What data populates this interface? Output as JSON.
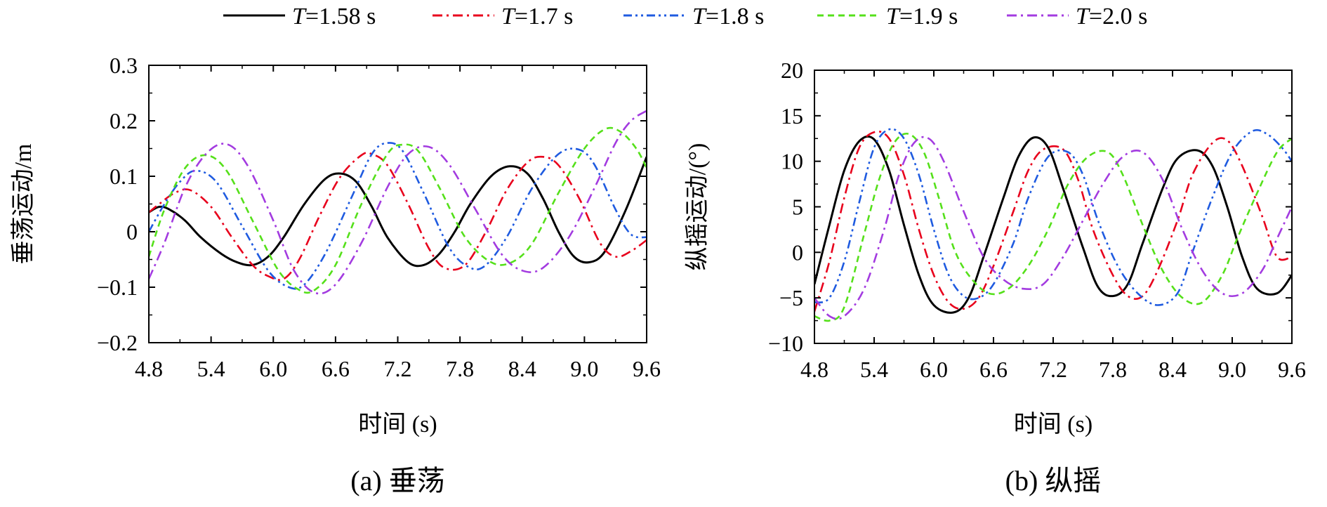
{
  "legend": [
    {
      "prefix": "T",
      "suffix": "=1.58 s"
    },
    {
      "prefix": "T",
      "suffix": "=1.7 s"
    },
    {
      "prefix": "T",
      "suffix": "=1.8 s"
    },
    {
      "prefix": "T",
      "suffix": "=1.9 s"
    },
    {
      "prefix": "T",
      "suffix": "=2.0 s"
    }
  ],
  "series_style": [
    {
      "color": "#000000",
      "dash": "solid"
    },
    {
      "color": "#e8001c",
      "dash": "dash-dot"
    },
    {
      "color": "#1f5be0",
      "dash": "dash-dot-dot"
    },
    {
      "color": "#55e01a",
      "dash": "dashed"
    },
    {
      "color": "#a33be0",
      "dash": "dash-dot"
    }
  ],
  "chart_data": [
    {
      "type": "line",
      "caption": "(a) 垂荡",
      "xlabel": "时间 (s)",
      "ylabel": "垂荡运动/m",
      "xlim": [
        4.8,
        9.6
      ],
      "ylim": [
        -0.2,
        0.3
      ],
      "xticks": [
        "4.8",
        "5.4",
        "6.0",
        "6.6",
        "7.2",
        "7.8",
        "8.4",
        "9.0",
        "9.6"
      ],
      "yticks": [
        "0.3",
        "0.2",
        "0.1",
        "0",
        "−0.1",
        "−0.2"
      ],
      "series": [
        {
          "name": "T=1.58 s",
          "x": [
            4.8,
            4.9,
            5.0,
            5.15,
            5.3,
            5.5,
            5.65,
            5.8,
            5.95,
            6.1,
            6.3,
            6.5,
            6.65,
            6.8,
            6.95,
            7.1,
            7.3,
            7.45,
            7.6,
            7.75,
            7.9,
            8.1,
            8.28,
            8.45,
            8.6,
            8.75,
            8.9,
            9.05,
            9.2,
            9.4,
            9.6
          ],
          "y": [
            0.035,
            0.045,
            0.04,
            0.02,
            -0.01,
            -0.04,
            -0.055,
            -0.06,
            -0.045,
            -0.01,
            0.05,
            0.095,
            0.105,
            0.09,
            0.045,
            -0.01,
            -0.055,
            -0.06,
            -0.04,
            0.0,
            0.05,
            0.1,
            0.118,
            0.105,
            0.06,
            0.0,
            -0.045,
            -0.055,
            -0.035,
            0.04,
            0.135
          ]
        },
        {
          "name": "T=1.7 s",
          "x": [
            4.8,
            4.9,
            5.05,
            5.2,
            5.4,
            5.6,
            5.8,
            5.95,
            6.1,
            6.25,
            6.45,
            6.65,
            6.85,
            6.95,
            7.1,
            7.3,
            7.5,
            7.65,
            7.85,
            8.05,
            8.25,
            8.45,
            8.6,
            8.75,
            8.95,
            9.15,
            9.3,
            9.45,
            9.6
          ],
          "y": [
            0.035,
            0.05,
            0.07,
            0.075,
            0.045,
            -0.01,
            -0.06,
            -0.08,
            -0.085,
            -0.05,
            0.03,
            0.1,
            0.138,
            0.14,
            0.12,
            0.05,
            -0.03,
            -0.065,
            -0.06,
            0.0,
            0.075,
            0.125,
            0.135,
            0.12,
            0.06,
            -0.02,
            -0.045,
            -0.035,
            -0.015
          ]
        },
        {
          "name": "T=1.8 s",
          "x": [
            4.8,
            4.95,
            5.1,
            5.25,
            5.45,
            5.7,
            5.95,
            6.15,
            6.3,
            6.5,
            6.75,
            6.95,
            7.1,
            7.25,
            7.45,
            7.7,
            7.9,
            8.05,
            8.25,
            8.5,
            8.75,
            8.95,
            9.1,
            9.3,
            9.45,
            9.6
          ],
          "y": [
            0.0,
            0.05,
            0.09,
            0.11,
            0.09,
            0.01,
            -0.07,
            -0.1,
            -0.095,
            -0.04,
            0.06,
            0.14,
            0.16,
            0.145,
            0.07,
            -0.03,
            -0.065,
            -0.06,
            -0.01,
            0.08,
            0.14,
            0.148,
            0.12,
            0.04,
            -0.005,
            -0.01
          ]
        },
        {
          "name": "T=1.9 s",
          "x": [
            4.8,
            4.95,
            5.15,
            5.35,
            5.55,
            5.8,
            6.05,
            6.25,
            6.4,
            6.6,
            6.85,
            7.1,
            7.25,
            7.4,
            7.6,
            7.85,
            8.1,
            8.3,
            8.5,
            8.75,
            9.0,
            9.2,
            9.35,
            9.5,
            9.6
          ],
          "y": [
            -0.045,
            0.04,
            0.115,
            0.138,
            0.11,
            0.02,
            -0.07,
            -0.105,
            -0.105,
            -0.06,
            0.05,
            0.14,
            0.157,
            0.145,
            0.08,
            -0.01,
            -0.055,
            -0.055,
            -0.02,
            0.07,
            0.15,
            0.185,
            0.18,
            0.15,
            0.115
          ]
        },
        {
          "name": "T=2.0 s",
          "x": [
            4.8,
            4.95,
            5.15,
            5.35,
            5.55,
            5.75,
            6.0,
            6.2,
            6.4,
            6.6,
            6.85,
            7.1,
            7.3,
            7.5,
            7.7,
            7.95,
            8.2,
            8.4,
            8.6,
            8.85,
            9.1,
            9.3,
            9.45,
            9.6
          ],
          "y": [
            -0.085,
            -0.02,
            0.08,
            0.14,
            0.158,
            0.12,
            0.02,
            -0.07,
            -0.11,
            -0.095,
            -0.02,
            0.08,
            0.14,
            0.153,
            0.12,
            0.04,
            -0.04,
            -0.07,
            -0.065,
            -0.01,
            0.08,
            0.16,
            0.2,
            0.218
          ]
        }
      ]
    },
    {
      "type": "line",
      "caption": "(b) 纵摇",
      "xlabel": "时间 (s)",
      "ylabel": "纵摇运动/(°)",
      "xlim": [
        4.8,
        9.6
      ],
      "ylim": [
        -10,
        20
      ],
      "xticks": [
        "4.8",
        "5.4",
        "6.0",
        "6.6",
        "7.2",
        "7.8",
        "8.4",
        "9.0",
        "9.6"
      ],
      "yticks": [
        "20",
        "15",
        "10",
        "5",
        "0",
        "−5",
        "−10"
      ],
      "series": [
        {
          "name": "T=1.58 s",
          "x": [
            4.8,
            4.95,
            5.1,
            5.25,
            5.4,
            5.55,
            5.7,
            5.85,
            6.0,
            6.2,
            6.35,
            6.5,
            6.7,
            6.85,
            7.0,
            7.15,
            7.3,
            7.5,
            7.65,
            7.8,
            7.95,
            8.1,
            8.3,
            8.45,
            8.65,
            8.8,
            8.95,
            9.1,
            9.25,
            9.45,
            9.6
          ],
          "y": [
            -3.5,
            3.0,
            9.0,
            12.2,
            12.4,
            9.0,
            3.0,
            -2.5,
            -5.8,
            -6.6,
            -5.0,
            -0.5,
            6.0,
            10.5,
            12.6,
            11.5,
            7.0,
            0.5,
            -3.8,
            -4.8,
            -3.5,
            1.0,
            7.0,
            10.3,
            11.2,
            9.5,
            5.0,
            -0.5,
            -4.0,
            -4.5,
            -2.5
          ]
        },
        {
          "name": "T=1.7 s",
          "x": [
            4.8,
            4.95,
            5.1,
            5.25,
            5.4,
            5.55,
            5.7,
            5.85,
            6.0,
            6.15,
            6.3,
            6.45,
            6.6,
            6.8,
            6.95,
            7.1,
            7.3,
            7.45,
            7.6,
            7.8,
            7.95,
            8.1,
            8.25,
            8.45,
            8.6,
            8.8,
            8.95,
            9.1,
            9.3,
            9.45,
            9.6
          ],
          "y": [
            -6.5,
            -1.0,
            6.0,
            11.5,
            13.2,
            12.5,
            8.5,
            2.5,
            -2.5,
            -5.5,
            -6.2,
            -5.0,
            -1.5,
            4.5,
            9.0,
            11.3,
            11.3,
            8.0,
            2.5,
            -2.5,
            -4.8,
            -4.8,
            -2.0,
            3.5,
            8.5,
            12.0,
            12.3,
            9.5,
            4.0,
            -0.5,
            -0.5
          ]
        },
        {
          "name": "T=1.8 s",
          "x": [
            4.8,
            4.95,
            5.1,
            5.25,
            5.4,
            5.55,
            5.7,
            5.85,
            6.0,
            6.15,
            6.3,
            6.45,
            6.6,
            6.8,
            6.95,
            7.15,
            7.35,
            7.5,
            7.65,
            7.85,
            8.05,
            8.25,
            8.45,
            8.6,
            8.8,
            9.0,
            9.2,
            9.35,
            9.5,
            9.6
          ],
          "y": [
            -5.5,
            -5.0,
            -1.0,
            5.5,
            11.5,
            13.5,
            12.5,
            8.5,
            2.5,
            -2.5,
            -4.8,
            -5.0,
            -3.5,
            1.0,
            6.0,
            10.5,
            11.0,
            8.5,
            3.5,
            -1.5,
            -4.5,
            -5.8,
            -4.5,
            0.0,
            6.0,
            11.0,
            13.3,
            13.0,
            11.5,
            10.0
          ]
        },
        {
          "name": "T=1.9 s",
          "x": [
            4.8,
            4.95,
            5.1,
            5.3,
            5.45,
            5.6,
            5.75,
            5.9,
            6.05,
            6.2,
            6.35,
            6.55,
            6.75,
            6.95,
            7.15,
            7.35,
            7.55,
            7.75,
            7.9,
            8.1,
            8.3,
            8.5,
            8.7,
            8.9,
            9.05,
            9.25,
            9.45,
            9.6
          ],
          "y": [
            -7.0,
            -7.5,
            -6.0,
            2.0,
            8.0,
            12.0,
            13.0,
            11.0,
            6.0,
            0.5,
            -2.5,
            -4.5,
            -4.0,
            -1.5,
            2.5,
            7.5,
            10.5,
            11.0,
            8.5,
            3.0,
            -2.0,
            -5.0,
            -5.5,
            -2.5,
            1.5,
            6.5,
            11.0,
            12.5
          ]
        },
        {
          "name": "T=2.0 s",
          "x": [
            4.8,
            4.95,
            5.1,
            5.3,
            5.5,
            5.65,
            5.8,
            5.95,
            6.1,
            6.3,
            6.5,
            6.7,
            6.9,
            7.1,
            7.3,
            7.5,
            7.7,
            7.9,
            8.1,
            8.3,
            8.5,
            8.7,
            8.9,
            9.1,
            9.3,
            9.45,
            9.6
          ],
          "y": [
            -5.0,
            -7.0,
            -7.0,
            -4.0,
            2.5,
            8.5,
            12.0,
            12.5,
            10.0,
            4.5,
            -0.5,
            -3.0,
            -4.0,
            -3.5,
            -0.5,
            3.5,
            7.5,
            10.5,
            11.0,
            8.0,
            2.5,
            -2.0,
            -4.5,
            -4.5,
            -2.0,
            1.5,
            5.0
          ]
        }
      ]
    }
  ]
}
